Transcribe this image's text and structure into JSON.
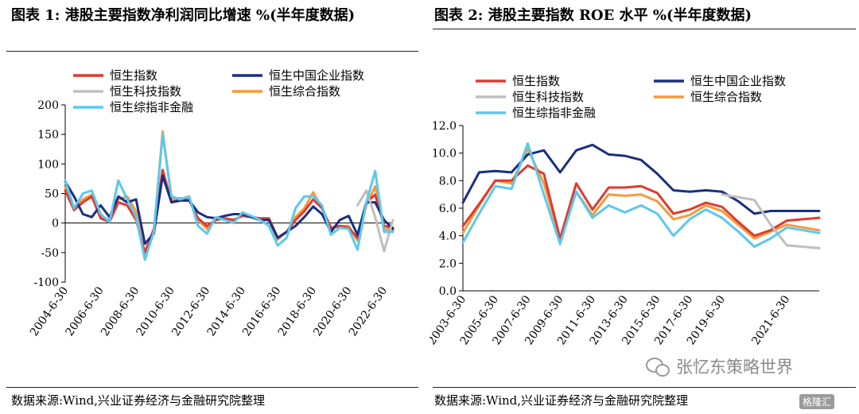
{
  "left": {
    "title": "图表 1:  港股主要指数净利润同比增速  %(半年度数据)",
    "source": "数据来源:Wind,兴业证券经济与金融研究院整理"
  },
  "right": {
    "title": "图表 2:  港股主要指数 ROE 水平  %(半年度数据)",
    "source": "数据来源:Wind,兴业证券经济与金融研究院整理"
  },
  "watermark": {
    "text": "张忆东策略世界",
    "icon": "wechat-icon"
  },
  "corner_logo": {
    "text": "格隆汇"
  },
  "chart_data": [
    {
      "type": "line",
      "title": "",
      "xlabel": "",
      "ylabel": "",
      "ylim": [
        -100,
        200
      ],
      "yticks": [
        -100,
        -50,
        0,
        50,
        100,
        150,
        200
      ],
      "x": [
        "2004-6-30",
        "2004-12-31",
        "2005-6-30",
        "2005-12-31",
        "2006-6-30",
        "2006-12-31",
        "2007-6-30",
        "2007-12-31",
        "2008-6-30",
        "2008-12-31",
        "2009-6-30",
        "2009-12-31",
        "2010-6-30",
        "2010-12-31",
        "2011-6-30",
        "2011-12-31",
        "2012-6-30",
        "2012-12-31",
        "2013-6-30",
        "2013-12-31",
        "2014-6-30",
        "2014-12-31",
        "2015-6-30",
        "2015-12-31",
        "2016-6-30",
        "2016-12-31",
        "2017-6-30",
        "2017-12-31",
        "2018-6-30",
        "2018-12-31",
        "2019-6-30",
        "2019-12-31",
        "2020-6-30",
        "2020-12-31",
        "2021-6-30",
        "2021-12-31",
        "2022-6-30",
        "2022-12-31"
      ],
      "xtick_labels": [
        "2004-6-30",
        "2006-6-30",
        "2008-6-30",
        "2010-6-30",
        "2012-6-30",
        "2014-6-30",
        "2016-6-30",
        "2018-6-30",
        "2020-6-30",
        "2022-6-30"
      ],
      "legend": {
        "placement": "top-left",
        "columns": 2
      },
      "grid": false,
      "series": [
        {
          "name": "恒生指数",
          "color": "#e03a2e",
          "values": [
            55,
            22,
            35,
            45,
            8,
            2,
            35,
            30,
            5,
            -50,
            -10,
            90,
            35,
            40,
            38,
            8,
            -5,
            5,
            8,
            5,
            12,
            10,
            8,
            8,
            -25,
            -15,
            5,
            20,
            40,
            25,
            -8,
            -5,
            -8,
            -25,
            35,
            48,
            -5,
            -8
          ]
        },
        {
          "name": "恒生中国企业指数",
          "color": "#1a2f80",
          "values": [
            70,
            45,
            15,
            10,
            30,
            10,
            45,
            35,
            40,
            -35,
            -18,
            80,
            35,
            38,
            38,
            18,
            10,
            8,
            12,
            15,
            15,
            10,
            5,
            5,
            -25,
            -15,
            -5,
            10,
            28,
            15,
            -15,
            5,
            12,
            -20,
            35,
            35,
            5,
            -10
          ]
        },
        {
          "name": "恒生科技指数",
          "color": "#bfbfbf",
          "values": [
            null,
            null,
            null,
            null,
            null,
            null,
            null,
            null,
            null,
            null,
            null,
            null,
            null,
            null,
            null,
            null,
            null,
            null,
            null,
            null,
            null,
            null,
            null,
            null,
            null,
            null,
            null,
            null,
            null,
            null,
            null,
            null,
            null,
            30,
            55,
            10,
            -48,
            5
          ]
        },
        {
          "name": "恒生综合指数",
          "color": "#f59a3c",
          "values": [
            60,
            25,
            40,
            48,
            10,
            5,
            40,
            45,
            20,
            -60,
            -15,
            155,
            40,
            42,
            40,
            5,
            -10,
            5,
            8,
            5,
            12,
            10,
            8,
            5,
            -28,
            -15,
            10,
            25,
            52,
            25,
            -10,
            -5,
            -5,
            -30,
            30,
            62,
            -10,
            -12
          ]
        },
        {
          "name": "恒生综指非金融",
          "color": "#5bc8f0",
          "values": [
            72,
            25,
            50,
            55,
            15,
            2,
            72,
            40,
            10,
            -62,
            -15,
            150,
            45,
            40,
            45,
            -5,
            -18,
            10,
            5,
            0,
            18,
            12,
            5,
            -5,
            -38,
            -25,
            25,
            45,
            45,
            30,
            -20,
            -8,
            -10,
            -45,
            35,
            88,
            -15,
            -15
          ]
        }
      ]
    },
    {
      "type": "line",
      "title": "",
      "xlabel": "",
      "ylabel": "",
      "ylim": [
        0,
        12
      ],
      "yticks": [
        0.0,
        2.0,
        4.0,
        6.0,
        8.0,
        10.0,
        12.0
      ],
      "x": [
        "2003-6-30",
        "2004-6-30",
        "2005-6-30",
        "2006-6-30",
        "2007-6-30",
        "2008-6-30",
        "2009-6-30",
        "2010-6-30",
        "2011-6-30",
        "2012-6-30",
        "2013-6-30",
        "2014-6-30",
        "2015-6-30",
        "2016-6-30",
        "2017-6-30",
        "2018-6-30",
        "2019-6-30",
        "2019-12-31",
        "2020-6-30",
        "2020-12-31",
        "2021-6-30",
        "2021-12-31",
        "2022-6-30"
      ],
      "xtick_labels": [
        "2003-6-30",
        "2005-6-30",
        "2007-6-30",
        "2009-6-30",
        "2011-6-30",
        "2013-6-30",
        "2015-6-30",
        "2017-6-30",
        "2019-6-30",
        "2021-6-30"
      ],
      "legend": {
        "placement": "top",
        "columns": 2
      },
      "grid": false,
      "series": [
        {
          "name": "恒生指数",
          "color": "#e03a2e",
          "values": [
            4.7,
            6.3,
            8.0,
            8.0,
            9.1,
            8.5,
            3.8,
            7.8,
            5.9,
            7.5,
            7.5,
            7.6,
            7.1,
            5.6,
            5.9,
            6.4,
            6.1,
            5.0,
            4.0,
            4.4,
            5.1,
            5.2,
            5.3
          ]
        },
        {
          "name": "恒生中国企业指数",
          "color": "#1a2f80",
          "values": [
            6.4,
            8.6,
            8.7,
            8.6,
            9.9,
            10.2,
            8.6,
            10.2,
            10.6,
            9.9,
            9.8,
            9.5,
            8.5,
            7.3,
            7.2,
            7.3,
            7.2,
            6.5,
            5.6,
            5.8,
            5.8,
            5.8,
            5.8
          ]
        },
        {
          "name": "恒生科技指数",
          "color": "#bfbfbf",
          "values": [
            null,
            null,
            null,
            null,
            null,
            null,
            null,
            null,
            null,
            null,
            null,
            null,
            null,
            null,
            null,
            null,
            7.0,
            6.8,
            6.6,
            4.8,
            3.3,
            3.2,
            3.1
          ]
        },
        {
          "name": "恒生综合指数",
          "color": "#f59a3c",
          "values": [
            4.2,
            6.2,
            8.0,
            7.8,
            10.3,
            7.8,
            3.8,
            7.2,
            5.5,
            7.0,
            6.9,
            7.0,
            6.5,
            5.2,
            5.5,
            6.2,
            5.8,
            4.8,
            3.8,
            4.3,
            4.8,
            4.6,
            4.4
          ]
        },
        {
          "name": "恒生综指非金融",
          "color": "#5bc8f0",
          "values": [
            3.5,
            5.6,
            7.6,
            7.4,
            10.7,
            7.0,
            3.4,
            7.2,
            5.3,
            6.2,
            5.7,
            6.2,
            5.6,
            4.0,
            5.2,
            5.9,
            5.3,
            4.3,
            3.2,
            3.8,
            4.6,
            4.4,
            4.2
          ]
        }
      ]
    }
  ]
}
